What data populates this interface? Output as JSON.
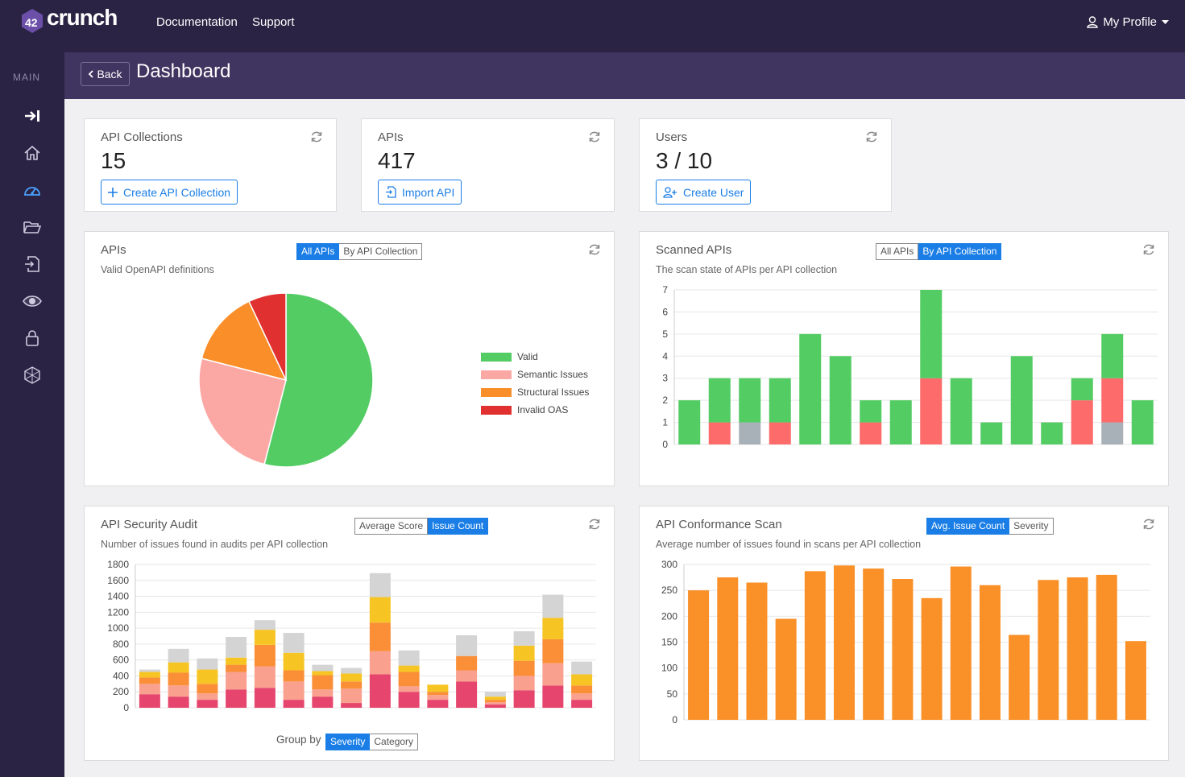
{
  "brand": {
    "logo_prefix": "42",
    "logo_text": "crunch"
  },
  "topnav": {
    "links": [
      "Documentation",
      "Support"
    ],
    "profile": "My Profile"
  },
  "sidebar": {
    "section_label": "MAIN",
    "icons": [
      "sign-in-icon",
      "home-icon",
      "dashboard-icon",
      "folder-icon",
      "import-icon",
      "eye-icon",
      "lock-icon",
      "network-icon"
    ],
    "active": "dashboard-icon"
  },
  "header": {
    "back_label": "Back",
    "title": "Dashboard"
  },
  "stats": [
    {
      "title": "API Collections",
      "value": "15",
      "button": "Create API Collection"
    },
    {
      "title": "APIs",
      "value": "417",
      "button": "Import API"
    },
    {
      "title": "Users",
      "value": "3 / 10",
      "button": "Create User"
    }
  ],
  "panels": {
    "apis": {
      "title": "APIs",
      "subtitle": "Valid OpenAPI definitions",
      "toggle": [
        "All APIs",
        "By API Collection"
      ],
      "toggle_active": 0
    },
    "scanned": {
      "title": "Scanned APIs",
      "subtitle": "The scan state of APIs per API collection",
      "toggle": [
        "All APIs",
        "By API Collection"
      ],
      "toggle_active": 1
    },
    "audit": {
      "title": "API Security Audit",
      "subtitle": "Number of issues found in audits per API collection",
      "toggle": [
        "Average Score",
        "Issue Count"
      ],
      "toggle_active": 1,
      "group_by_label": "Group by",
      "group_by": [
        "Severity",
        "Category"
      ],
      "group_by_active": 0
    },
    "conformance": {
      "title": "API Conformance Scan",
      "subtitle": "Average number of issues found in scans per API collection",
      "toggle": [
        "Avg. Issue Count",
        "Severity"
      ],
      "toggle_active": 0
    }
  },
  "colors": {
    "accent": "#1a7ee6",
    "valid": "#52cc63",
    "semantic": "#fba8a5",
    "structural": "#fa8f2a",
    "invalid": "#e03030",
    "scan_fail": "#fd6b6b",
    "scan_gray": "#a9b1b8",
    "audit_critical": "#e6456e",
    "audit_high": "#f9a08e",
    "audit_medium": "#fa8f37",
    "audit_low": "#f6c524",
    "audit_info": "#d4d4d4",
    "conformance": "#fa9028"
  },
  "chart_data": [
    {
      "id": "apis-pie",
      "type": "pie",
      "categories": [
        "Valid",
        "Semantic Issues",
        "Structural Issues",
        "Invalid OAS"
      ],
      "values": [
        54,
        25,
        14,
        7
      ]
    },
    {
      "id": "scanned-stacked",
      "type": "bar",
      "stacked": true,
      "ylim": [
        0,
        7
      ],
      "yticks": [
        0,
        1,
        2,
        3,
        4,
        5,
        6,
        7
      ],
      "series": [
        {
          "color": "gray",
          "values": [
            0,
            0,
            1,
            0,
            0,
            0,
            0,
            0,
            0,
            0,
            0,
            0,
            0,
            0,
            1,
            0
          ]
        },
        {
          "color": "red",
          "values": [
            0,
            1,
            0,
            1,
            0,
            0,
            1,
            0,
            3,
            0,
            0,
            0,
            0,
            2,
            2,
            0
          ]
        },
        {
          "color": "green",
          "values": [
            2,
            2,
            2,
            2,
            5,
            4,
            1,
            2,
            4,
            3,
            1,
            4,
            1,
            1,
            2,
            2
          ]
        }
      ]
    },
    {
      "id": "audit-stacked",
      "type": "bar",
      "stacked": true,
      "ylim": [
        0,
        1800
      ],
      "yticks": [
        0,
        200,
        400,
        600,
        800,
        1000,
        1200,
        1400,
        1600,
        1800
      ],
      "series": [
        {
          "color": "critical",
          "values": [
            170,
            140,
            100,
            230,
            250,
            100,
            140,
            60,
            420,
            200,
            100,
            330,
            40,
            220,
            280,
            100
          ]
        },
        {
          "color": "high",
          "values": [
            130,
            140,
            80,
            220,
            270,
            230,
            90,
            180,
            290,
            70,
            60,
            140,
            30,
            180,
            280,
            80
          ]
        },
        {
          "color": "medium",
          "values": [
            80,
            160,
            120,
            90,
            270,
            140,
            180,
            90,
            360,
            180,
            40,
            180,
            30,
            190,
            300,
            100
          ]
        },
        {
          "color": "low",
          "values": [
            70,
            130,
            180,
            90,
            190,
            220,
            50,
            100,
            320,
            80,
            90,
            0,
            40,
            190,
            270,
            140
          ]
        },
        {
          "color": "info",
          "values": [
            30,
            170,
            140,
            260,
            120,
            250,
            80,
            70,
            300,
            190,
            0,
            260,
            60,
            180,
            290,
            160
          ]
        }
      ]
    },
    {
      "id": "conformance-bar",
      "type": "bar",
      "ylim": [
        0,
        300
      ],
      "yticks": [
        0,
        50,
        100,
        150,
        200,
        250,
        300
      ],
      "values": [
        250,
        275,
        265,
        195,
        287,
        298,
        292,
        272,
        235,
        296,
        260,
        164,
        270,
        275,
        280,
        152
      ]
    }
  ]
}
